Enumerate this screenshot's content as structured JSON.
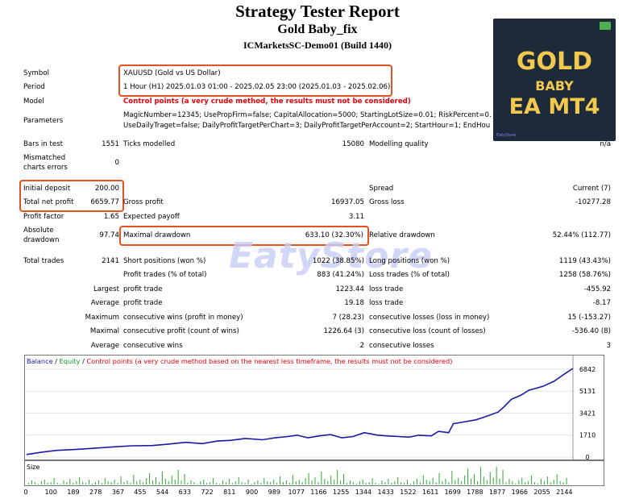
{
  "report": {
    "title": "Strategy Tester Report",
    "subtitle": "Gold Baby_fix",
    "server": "ICMarketsSC-Demo01 (Build 1440)"
  },
  "badge": {
    "line1": "GOLD",
    "line2": "BABY",
    "line3": "EA MT4",
    "store_tag": "EatyStore"
  },
  "watermark": "EatyStore",
  "settings": {
    "symbol_label": "Symbol",
    "symbol_value": "XAUUSD (Gold vs US Dollar)",
    "period_label": "Period",
    "period_value": "1 Hour (H1) 2025.01.03 01:00 - 2025.02.05 23:00 (2025.01.03 - 2025.02.06)",
    "model_label": "Model",
    "model_value": "Control points (a very crude method, the results must not be considered)",
    "parameters_label": "Parameters",
    "parameters_line1": "MagicNumber=12345; UsePropFirm=false; CapitalAllocation=5000; StartingLotSize=0.01; RiskPercent=0.1; T",
    "parameters_line2": "UseDailyTraget=false; DailyProfitTargetPerChart=3; DailyProfitTargetPerAccount=2; StartHour=1; EndHour=",
    "bars_label": "Bars in test",
    "bars_value": "1551",
    "ticks_label": "Ticks modelled",
    "ticks_value": "15080",
    "quality_label": "Modelling quality",
    "quality_value": "n/a",
    "mismatch_label_1": "Mismatched",
    "mismatch_label_2": "charts errors",
    "mismatch_value": "0"
  },
  "results": {
    "deposit_label": "Initial deposit",
    "deposit_value": "200.00",
    "spread_label": "Spread",
    "spread_value": "Current (7)",
    "net_label": "Total net profit",
    "net_value": "6659.77",
    "gross_profit_label": "Gross profit",
    "gross_profit_value": "16937.05",
    "gross_loss_label": "Gross loss",
    "gross_loss_value": "-10277.28",
    "pf_label": "Profit factor",
    "pf_value": "1.65",
    "ep_label": "Expected payoff",
    "ep_value": "3.11",
    "abs_dd_label_1": "Absolute",
    "abs_dd_label_2": "drawdown",
    "abs_dd_value": "97.74",
    "max_dd_label": "Maximal drawdown",
    "max_dd_value": "633.10 (32.30%)",
    "rel_dd_label": "Relative drawdown",
    "rel_dd_value": "52.44% (112.77)",
    "trades_label": "Total trades",
    "trades_value": "2141",
    "short_label": "Short positions (won %)",
    "short_value": "1022 (38.85%)",
    "long_label": "Long positions (won %)",
    "long_value": "1119 (43.43%)",
    "profit_trades_label": "Profit trades (% of total)",
    "profit_trades_value": "883 (41.24%)",
    "loss_trades_label": "Loss trades (% of total)",
    "loss_trades_value": "1258 (58.76%)",
    "largest_label": "Largest",
    "largest_pt_label": "profit trade",
    "largest_pt_value": "1223.44",
    "largest_lt_label": "loss trade",
    "largest_lt_value": "-455.92",
    "average_label": "Average",
    "average_pt_label": "profit trade",
    "average_pt_value": "19.18",
    "average_lt_label": "loss trade",
    "average_lt_value": "-8.17",
    "maximum_label": "Maximum",
    "max_cw_label": "consecutive wins (profit in money)",
    "max_cw_value": "7 (28.23)",
    "max_cl_label": "consecutive losses (loss in money)",
    "max_cl_value": "15 (-153.27)",
    "maximal_label": "Maximal",
    "maximal_cp_label": "consecutive profit (count of wins)",
    "maximal_cp_value": "1226.64 (3)",
    "maximal_cl_label": "consecutive loss (count of losses)",
    "maximal_cl_value": "-536.40 (8)",
    "avg2_label": "Average",
    "avg_cw_label": "consecutive wins",
    "avg_cw_value": "2",
    "avg_cl_label": "consecutive losses",
    "avg_cl_value": "3"
  },
  "legend": {
    "balance": "Balance",
    "sep1": " / ",
    "equity": "Equity",
    "sep2": " / ",
    "control": "Control points (a very crude method based on the nearest less timeframe, the results must not be considered)"
  },
  "colors": {
    "balance": "#1a1aa6",
    "equity": "#0a9a2a",
    "control": "#e8000b",
    "highlight": "#e2541f",
    "volume": "#2fa82f"
  },
  "volume_label": "Size",
  "chart_data": {
    "type": "line",
    "y_ticks": [
      "6842",
      "5131",
      "3421",
      "1710",
      "0"
    ],
    "x_ticks": [
      "0",
      "100",
      "189",
      "278",
      "367",
      "455",
      "544",
      "633",
      "722",
      "811",
      "900",
      "989",
      "1077",
      "1166",
      "1255",
      "1344",
      "1433",
      "1522",
      "1611",
      "1699",
      "1788",
      "1877",
      "1966",
      "2055",
      "2144"
    ],
    "series": [
      {
        "name": "Balance",
        "x": [
          0,
          60,
          120,
          200,
          280,
          367,
          420,
          500,
          560,
          633,
          700,
          760,
          811,
          870,
          940,
          989,
          1040,
          1077,
          1120,
          1166,
          1210,
          1255,
          1300,
          1344,
          1400,
          1433,
          1480,
          1522,
          1560,
          1611,
          1640,
          1680,
          1699,
          1730,
          1788,
          1820,
          1877,
          1900,
          1930,
          1966,
          2000,
          2055,
          2100,
          2144,
          2175
        ],
        "y": [
          200,
          380,
          520,
          600,
          700,
          820,
          880,
          900,
          1000,
          1150,
          1050,
          1250,
          1300,
          1450,
          1350,
          1500,
          1600,
          1700,
          1500,
          1650,
          1750,
          1500,
          1600,
          1900,
          1700,
          1650,
          1600,
          1550,
          1700,
          1650,
          2000,
          1900,
          2600,
          2700,
          2900,
          3100,
          3500,
          3900,
          4500,
          4800,
          5200,
          5500,
          5900,
          6500,
          6900
        ]
      }
    ],
    "ylim": [
      0,
      6900
    ]
  }
}
